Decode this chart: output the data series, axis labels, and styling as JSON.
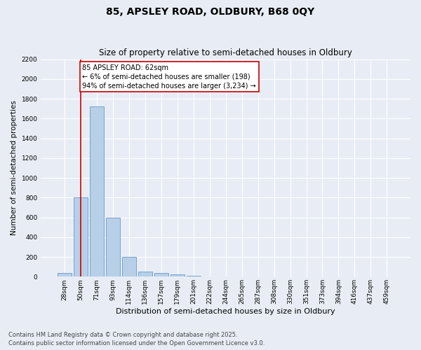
{
  "title1": "85, APSLEY ROAD, OLDBURY, B68 0QY",
  "title2": "Size of property relative to semi-detached houses in Oldbury",
  "xlabel": "Distribution of semi-detached houses by size in Oldbury",
  "ylabel": "Number of semi-detached properties",
  "categories": [
    "28sqm",
    "50sqm",
    "71sqm",
    "93sqm",
    "114sqm",
    "136sqm",
    "157sqm",
    "179sqm",
    "201sqm",
    "222sqm",
    "244sqm",
    "265sqm",
    "287sqm",
    "308sqm",
    "330sqm",
    "351sqm",
    "373sqm",
    "394sqm",
    "416sqm",
    "437sqm",
    "459sqm"
  ],
  "values": [
    40,
    800,
    1720,
    600,
    200,
    55,
    40,
    20,
    10,
    0,
    0,
    0,
    0,
    0,
    0,
    0,
    0,
    0,
    0,
    0,
    0
  ],
  "bar_color": "#b8cfe8",
  "bar_edge_color": "#6699cc",
  "redline_x": 1.0,
  "annotation_text": "85 APSLEY ROAD: 62sqm\n← 6% of semi-detached houses are smaller (198)\n94% of semi-detached houses are larger (3,234) →",
  "ylim": [
    0,
    2200
  ],
  "yticks": [
    0,
    200,
    400,
    600,
    800,
    1000,
    1200,
    1400,
    1600,
    1800,
    2000,
    2200
  ],
  "footnote": "Contains HM Land Registry data © Crown copyright and database right 2025.\nContains public sector information licensed under the Open Government Licence v3.0.",
  "bg_color": "#e8edf5",
  "grid_color": "#ffffff",
  "annotation_box_color": "#ffffff",
  "annotation_box_edge": "#cc0000",
  "redline_color": "#cc0000",
  "title1_fontsize": 10,
  "title2_fontsize": 8.5,
  "xlabel_fontsize": 8,
  "ylabel_fontsize": 7.5,
  "tick_fontsize": 6.5,
  "annot_fontsize": 7,
  "footnote_fontsize": 6
}
